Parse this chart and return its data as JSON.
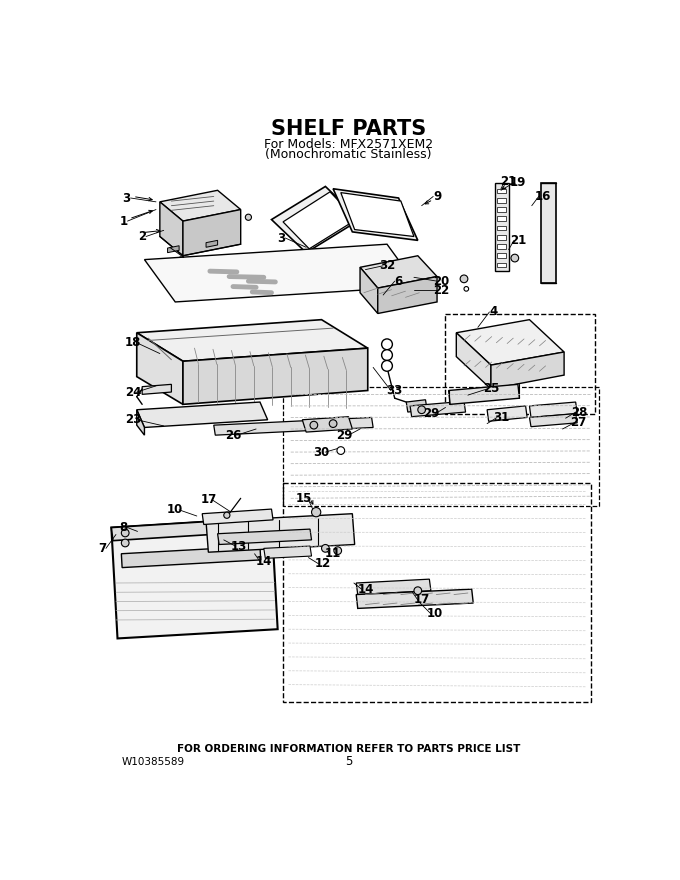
{
  "title": "SHELF PARTS",
  "subtitle1": "For Models: MFX2571XEM2",
  "subtitle2": "(Monochromatic Stainless)",
  "footer_bold": "FOR ORDERING INFORMATION REFER TO PARTS PRICE LIST",
  "footer_left": "W10385589",
  "footer_center": "5",
  "bg_color": "#ffffff",
  "title_fontsize": 15,
  "subtitle_fontsize": 9,
  "footer_fontsize": 7.5
}
